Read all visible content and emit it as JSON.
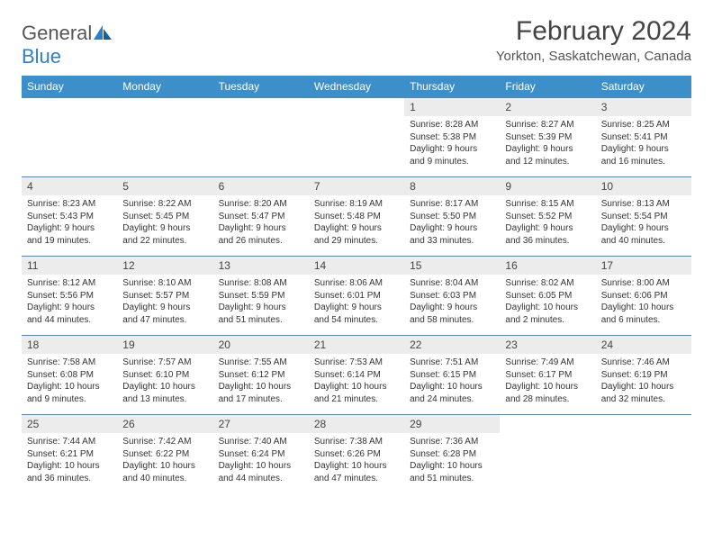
{
  "logo": {
    "part1": "General",
    "part2": "Blue"
  },
  "title": "February 2024",
  "location": "Yorkton, Saskatchewan, Canada",
  "colors": {
    "header_bg": "#3d8fc9",
    "header_text": "#ffffff",
    "daynum_bg": "#ececec",
    "border": "#3d8fc9",
    "logo_blue": "#2f7fc4",
    "text": "#333333"
  },
  "dayHeaders": [
    "Sunday",
    "Monday",
    "Tuesday",
    "Wednesday",
    "Thursday",
    "Friday",
    "Saturday"
  ],
  "weeks": [
    [
      {
        "num": "",
        "lines": []
      },
      {
        "num": "",
        "lines": []
      },
      {
        "num": "",
        "lines": []
      },
      {
        "num": "",
        "lines": []
      },
      {
        "num": "1",
        "lines": [
          "Sunrise: 8:28 AM",
          "Sunset: 5:38 PM",
          "Daylight: 9 hours and 9 minutes."
        ]
      },
      {
        "num": "2",
        "lines": [
          "Sunrise: 8:27 AM",
          "Sunset: 5:39 PM",
          "Daylight: 9 hours and 12 minutes."
        ]
      },
      {
        "num": "3",
        "lines": [
          "Sunrise: 8:25 AM",
          "Sunset: 5:41 PM",
          "Daylight: 9 hours and 16 minutes."
        ]
      }
    ],
    [
      {
        "num": "4",
        "lines": [
          "Sunrise: 8:23 AM",
          "Sunset: 5:43 PM",
          "Daylight: 9 hours and 19 minutes."
        ]
      },
      {
        "num": "5",
        "lines": [
          "Sunrise: 8:22 AM",
          "Sunset: 5:45 PM",
          "Daylight: 9 hours and 22 minutes."
        ]
      },
      {
        "num": "6",
        "lines": [
          "Sunrise: 8:20 AM",
          "Sunset: 5:47 PM",
          "Daylight: 9 hours and 26 minutes."
        ]
      },
      {
        "num": "7",
        "lines": [
          "Sunrise: 8:19 AM",
          "Sunset: 5:48 PM",
          "Daylight: 9 hours and 29 minutes."
        ]
      },
      {
        "num": "8",
        "lines": [
          "Sunrise: 8:17 AM",
          "Sunset: 5:50 PM",
          "Daylight: 9 hours and 33 minutes."
        ]
      },
      {
        "num": "9",
        "lines": [
          "Sunrise: 8:15 AM",
          "Sunset: 5:52 PM",
          "Daylight: 9 hours and 36 minutes."
        ]
      },
      {
        "num": "10",
        "lines": [
          "Sunrise: 8:13 AM",
          "Sunset: 5:54 PM",
          "Daylight: 9 hours and 40 minutes."
        ]
      }
    ],
    [
      {
        "num": "11",
        "lines": [
          "Sunrise: 8:12 AM",
          "Sunset: 5:56 PM",
          "Daylight: 9 hours and 44 minutes."
        ]
      },
      {
        "num": "12",
        "lines": [
          "Sunrise: 8:10 AM",
          "Sunset: 5:57 PM",
          "Daylight: 9 hours and 47 minutes."
        ]
      },
      {
        "num": "13",
        "lines": [
          "Sunrise: 8:08 AM",
          "Sunset: 5:59 PM",
          "Daylight: 9 hours and 51 minutes."
        ]
      },
      {
        "num": "14",
        "lines": [
          "Sunrise: 8:06 AM",
          "Sunset: 6:01 PM",
          "Daylight: 9 hours and 54 minutes."
        ]
      },
      {
        "num": "15",
        "lines": [
          "Sunrise: 8:04 AM",
          "Sunset: 6:03 PM",
          "Daylight: 9 hours and 58 minutes."
        ]
      },
      {
        "num": "16",
        "lines": [
          "Sunrise: 8:02 AM",
          "Sunset: 6:05 PM",
          "Daylight: 10 hours and 2 minutes."
        ]
      },
      {
        "num": "17",
        "lines": [
          "Sunrise: 8:00 AM",
          "Sunset: 6:06 PM",
          "Daylight: 10 hours and 6 minutes."
        ]
      }
    ],
    [
      {
        "num": "18",
        "lines": [
          "Sunrise: 7:58 AM",
          "Sunset: 6:08 PM",
          "Daylight: 10 hours and 9 minutes."
        ]
      },
      {
        "num": "19",
        "lines": [
          "Sunrise: 7:57 AM",
          "Sunset: 6:10 PM",
          "Daylight: 10 hours and 13 minutes."
        ]
      },
      {
        "num": "20",
        "lines": [
          "Sunrise: 7:55 AM",
          "Sunset: 6:12 PM",
          "Daylight: 10 hours and 17 minutes."
        ]
      },
      {
        "num": "21",
        "lines": [
          "Sunrise: 7:53 AM",
          "Sunset: 6:14 PM",
          "Daylight: 10 hours and 21 minutes."
        ]
      },
      {
        "num": "22",
        "lines": [
          "Sunrise: 7:51 AM",
          "Sunset: 6:15 PM",
          "Daylight: 10 hours and 24 minutes."
        ]
      },
      {
        "num": "23",
        "lines": [
          "Sunrise: 7:49 AM",
          "Sunset: 6:17 PM",
          "Daylight: 10 hours and 28 minutes."
        ]
      },
      {
        "num": "24",
        "lines": [
          "Sunrise: 7:46 AM",
          "Sunset: 6:19 PM",
          "Daylight: 10 hours and 32 minutes."
        ]
      }
    ],
    [
      {
        "num": "25",
        "lines": [
          "Sunrise: 7:44 AM",
          "Sunset: 6:21 PM",
          "Daylight: 10 hours and 36 minutes."
        ]
      },
      {
        "num": "26",
        "lines": [
          "Sunrise: 7:42 AM",
          "Sunset: 6:22 PM",
          "Daylight: 10 hours and 40 minutes."
        ]
      },
      {
        "num": "27",
        "lines": [
          "Sunrise: 7:40 AM",
          "Sunset: 6:24 PM",
          "Daylight: 10 hours and 44 minutes."
        ]
      },
      {
        "num": "28",
        "lines": [
          "Sunrise: 7:38 AM",
          "Sunset: 6:26 PM",
          "Daylight: 10 hours and 47 minutes."
        ]
      },
      {
        "num": "29",
        "lines": [
          "Sunrise: 7:36 AM",
          "Sunset: 6:28 PM",
          "Daylight: 10 hours and 51 minutes."
        ]
      },
      {
        "num": "",
        "lines": []
      },
      {
        "num": "",
        "lines": []
      }
    ]
  ]
}
